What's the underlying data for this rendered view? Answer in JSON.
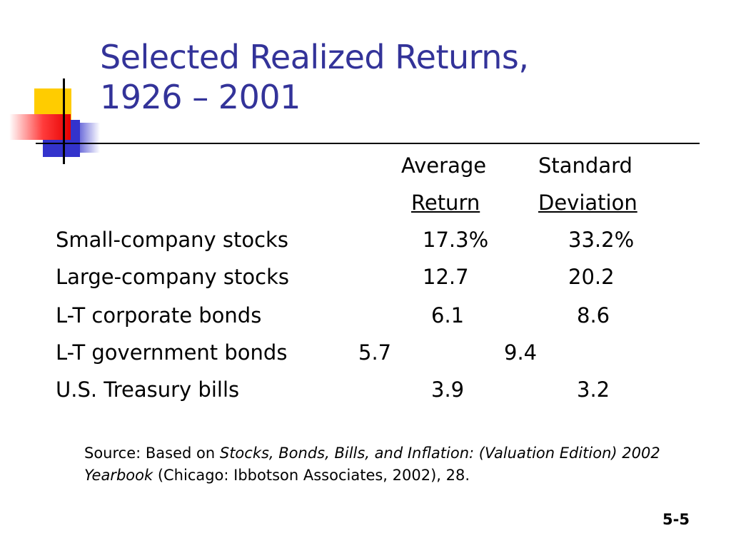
{
  "title": {
    "line1": "Selected Realized Returns,",
    "line2": "1926 – 2001"
  },
  "table": {
    "headers": {
      "average_line1": "Average",
      "average_line2": "Return",
      "sd_line1": "Standard",
      "sd_line2": "Deviation"
    },
    "rows": [
      {
        "label": "Small-company stocks",
        "average": "17.3%",
        "sd": "33.2%"
      },
      {
        "label": "Large-company stocks",
        "average": "12.7",
        "sd": "20.2"
      },
      {
        "label": "L-T corporate bonds",
        "average": "6.1",
        "sd": "8.6"
      },
      {
        "label": "L-T government bonds",
        "average": "5.7",
        "sd": "9.4"
      },
      {
        "label": "U.S. Treasury bills",
        "average": "3.9",
        "sd": "3.2"
      }
    ]
  },
  "source": {
    "prefix": "Source:  Based on ",
    "italic": "Stocks, Bonds, Bills, and Inflation:  (Valuation Edition) 2002 Yearbook",
    "suffix": " (Chicago:  Ibbotson Associates, 2002), 28."
  },
  "slide_number": "5-5",
  "colors": {
    "title": "#333399",
    "deco_yellow": "#ffcc00",
    "deco_blue": "#3333cc",
    "deco_red": "#e60000"
  }
}
